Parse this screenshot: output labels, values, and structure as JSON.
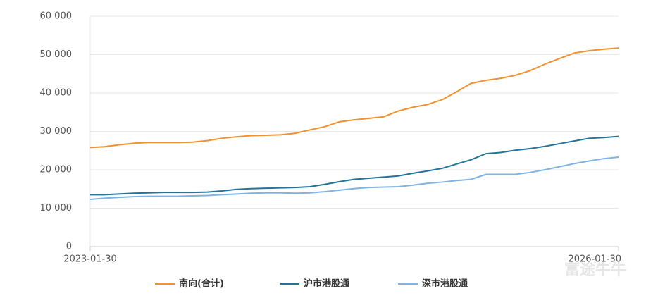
{
  "chart_data": {
    "type": "line",
    "x": [
      "2023-01-30",
      "2023-02-28",
      "2023-03-30",
      "2023-04-30",
      "2023-05-30",
      "2023-06-30",
      "2023-07-30",
      "2023-08-30",
      "2023-09-30",
      "2023-10-30",
      "2023-11-30",
      "2023-12-30",
      "2024-01-30",
      "2024-02-28",
      "2024-03-30",
      "2024-04-30",
      "2024-05-30",
      "2024-06-30",
      "2024-07-30",
      "2024-08-30",
      "2024-09-30",
      "2024-10-30",
      "2024-11-30",
      "2024-12-30",
      "2025-01-30",
      "2025-02-28",
      "2025-03-30",
      "2025-04-30",
      "2025-05-30",
      "2025-06-30",
      "2025-07-30",
      "2025-08-30",
      "2025-09-30",
      "2025-10-30",
      "2025-11-30",
      "2025-12-30",
      "2026-01-30"
    ],
    "xlim": [
      "2023-01-30",
      "2026-01-30"
    ],
    "xticks": [
      "2023-01-30",
      "2026-01-30"
    ],
    "ylim": [
      0,
      60000
    ],
    "yticks": [
      0,
      {
        "value": 10000,
        "label": "10 000"
      },
      {
        "value": 20000,
        "label": "20 000"
      },
      {
        "value": 30000,
        "label": "30 000"
      },
      {
        "value": 40000,
        "label": "40 000"
      },
      {
        "value": 50000,
        "label": "50 000"
      },
      {
        "value": 60000,
        "label": "60 000"
      }
    ],
    "grid": true,
    "legend": "bottom",
    "watermark": "富途牛牛",
    "series": [
      {
        "name": "南向(合计)",
        "color": "#f0922e",
        "values": [
          25800,
          26000,
          26500,
          26900,
          27100,
          27100,
          27100,
          27200,
          27600,
          28200,
          28600,
          28900,
          29000,
          29100,
          29500,
          30400,
          31200,
          32500,
          33000,
          33400,
          33800,
          35300,
          36300,
          37000,
          38300,
          40300,
          42500,
          43300,
          43800,
          44600,
          45800,
          47500,
          49000,
          50400,
          51000,
          51400,
          51700
        ]
      },
      {
        "name": "沪市港股通",
        "color": "#24739a",
        "values": [
          13500,
          13500,
          13700,
          13900,
          14000,
          14100,
          14100,
          14100,
          14200,
          14500,
          14900,
          15100,
          15200,
          15300,
          15400,
          15600,
          16200,
          16900,
          17500,
          17800,
          18100,
          18400,
          19100,
          19700,
          20400,
          21500,
          22600,
          24200,
          24500,
          25100,
          25500,
          26100,
          26800,
          27500,
          28200,
          28400,
          28700
        ]
      },
      {
        "name": "深市港股通",
        "color": "#7fb3e5",
        "values": [
          12300,
          12600,
          12800,
          13000,
          13100,
          13100,
          13100,
          13200,
          13300,
          13500,
          13700,
          13900,
          14000,
          14000,
          13900,
          14000,
          14300,
          14700,
          15100,
          15400,
          15500,
          15600,
          16000,
          16500,
          16800,
          17200,
          17500,
          18800,
          18800,
          18800,
          19300,
          20000,
          20800,
          21600,
          22300,
          22900,
          23300
        ]
      }
    ]
  }
}
